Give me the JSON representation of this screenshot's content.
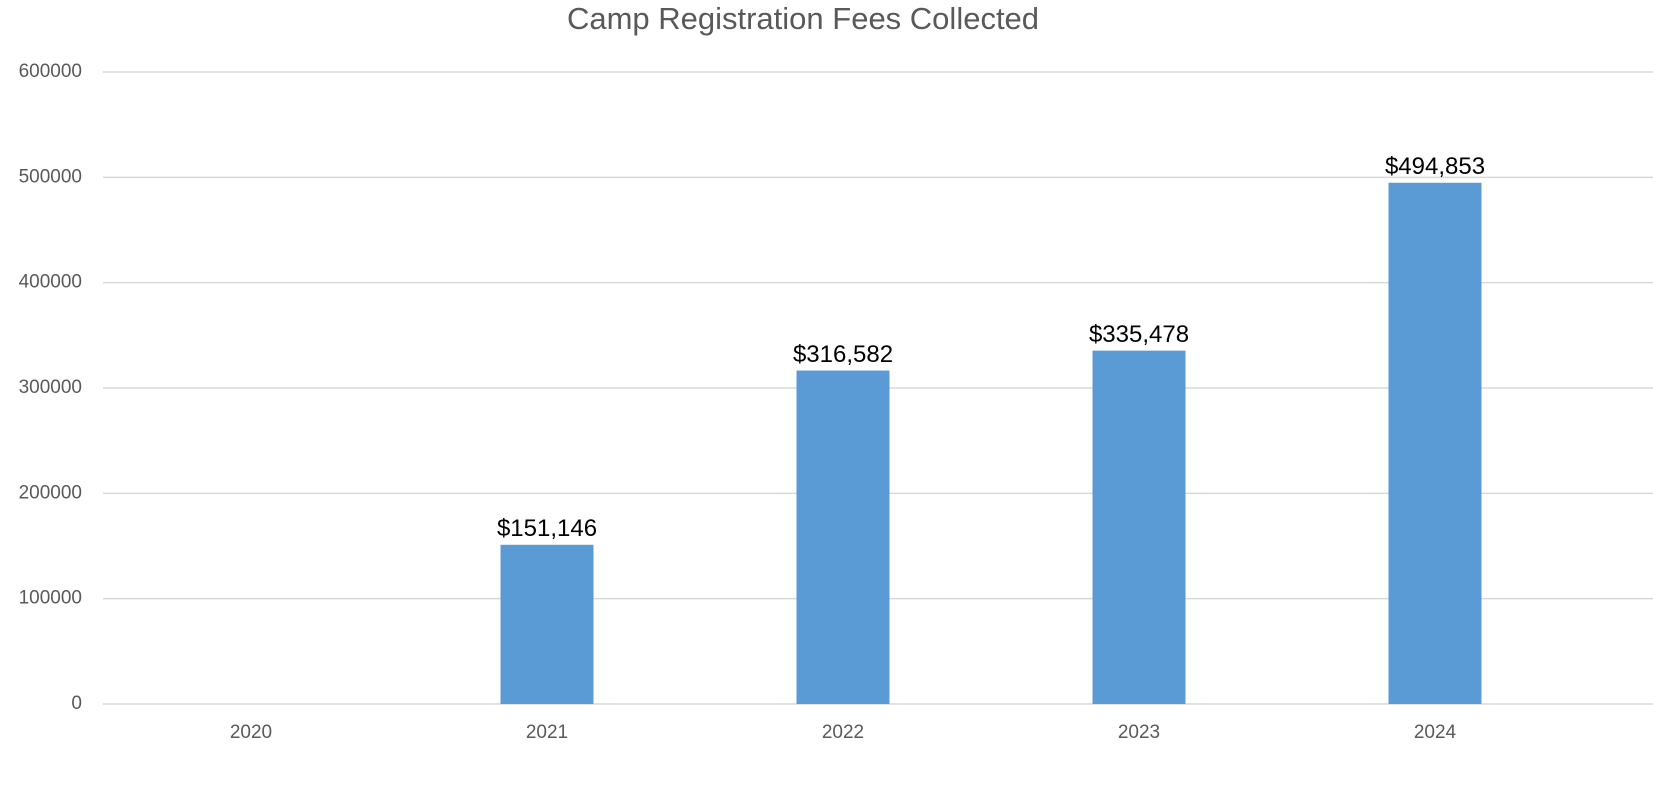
{
  "chart_data": {
    "type": "bar",
    "title": "Camp Registration Fees Collected",
    "categories": [
      "2020",
      "2021",
      "2022",
      "2023",
      "2024"
    ],
    "values": [
      null,
      151146,
      316582,
      335478,
      494853
    ],
    "value_labels": [
      null,
      "$151,146",
      "$316,582",
      "$335,478",
      "$494,853"
    ],
    "color": "#5b9bd5",
    "ylim": [
      0,
      600000
    ],
    "yticks": [
      0,
      100000,
      200000,
      300000,
      400000,
      500000,
      600000
    ],
    "grid": true
  }
}
